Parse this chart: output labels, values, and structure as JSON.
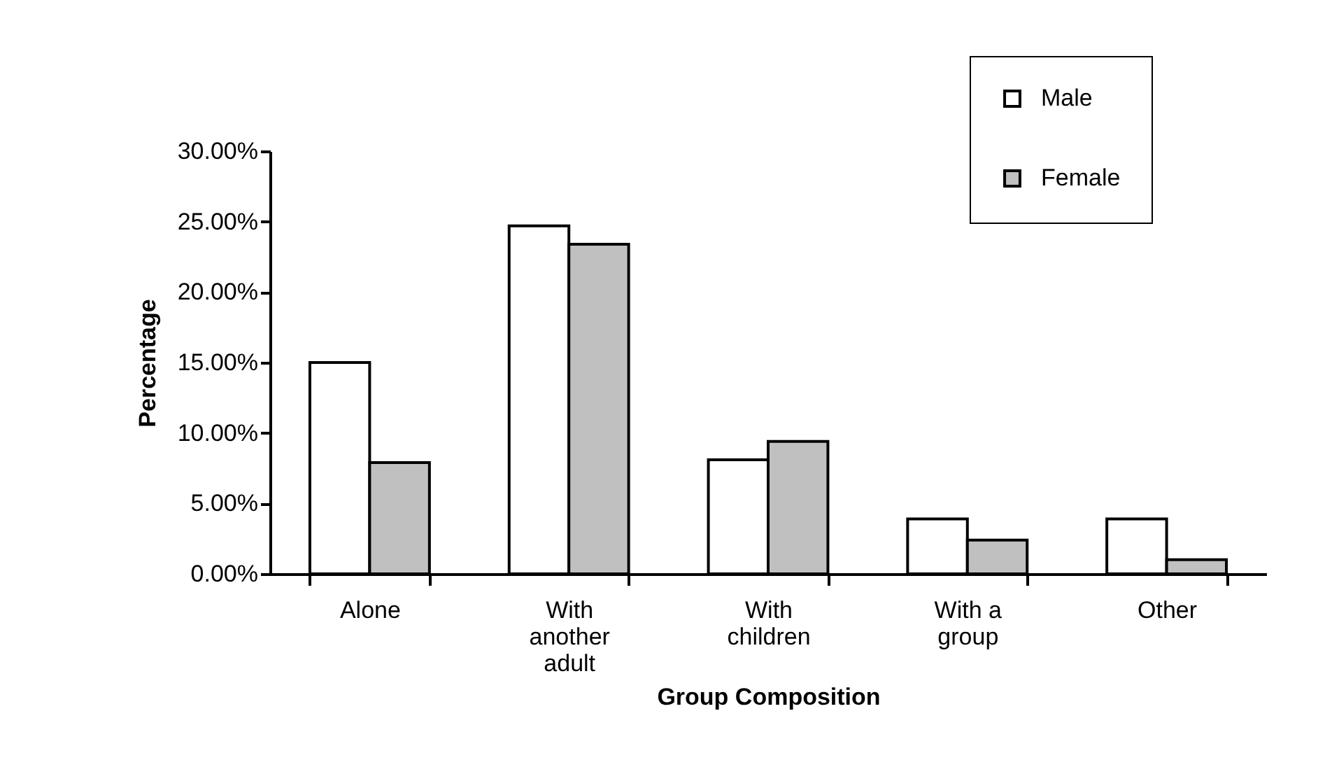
{
  "chart_data": {
    "type": "bar",
    "xlabel": "Group Composition",
    "ylabel": "Percentage",
    "categories": [
      "Alone",
      "With another adult",
      "With children",
      "With a group",
      "Other"
    ],
    "series": [
      {
        "name": "Male",
        "color": "#ffffff",
        "values": [
          15.0,
          24.7,
          8.1,
          3.9,
          3.9
        ]
      },
      {
        "name": "Female",
        "color": "#c0c0c0",
        "values": [
          7.9,
          23.4,
          9.4,
          2.4,
          1.0
        ]
      }
    ],
    "ylim": [
      0,
      30
    ],
    "yticks": [
      {
        "value": 0,
        "label": "0.00%"
      },
      {
        "value": 5,
        "label": "5.00%"
      },
      {
        "value": 10,
        "label": "10.00%"
      },
      {
        "value": 15,
        "label": "15.00%"
      },
      {
        "value": 20,
        "label": "20.00%"
      },
      {
        "value": 25,
        "label": "25.00%"
      },
      {
        "value": 30,
        "label": "30.00%"
      }
    ],
    "legend": "top right",
    "grid": false
  }
}
